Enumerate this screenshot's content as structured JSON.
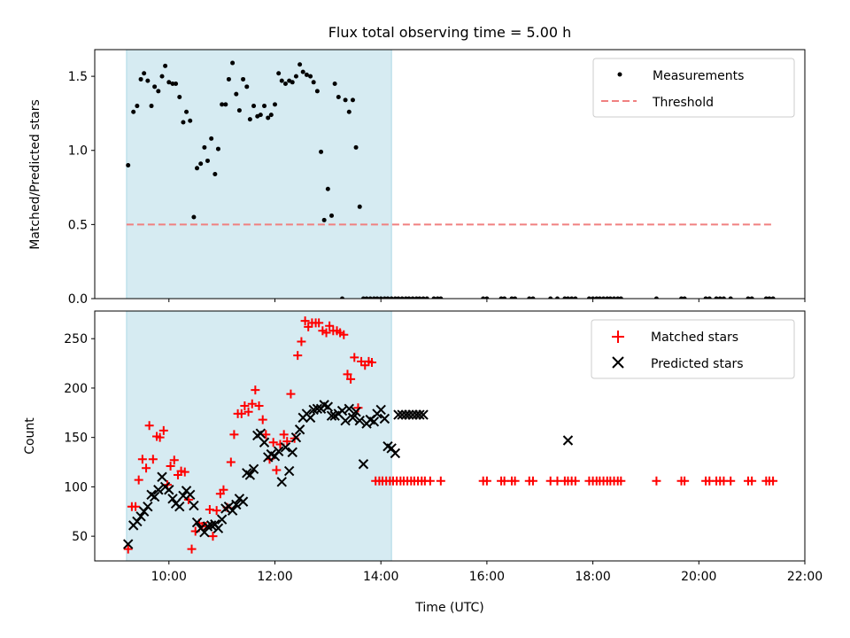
{
  "title": "Flux total observing time = 5.00 h",
  "xlabel": "Time (UTC)",
  "xtick_labels": [
    "10:00",
    "12:00",
    "14:00",
    "16:00",
    "18:00",
    "20:00",
    "22:00"
  ],
  "colors": {
    "measurements": "#000000",
    "threshold": "#f08080",
    "matched": "#ff0000",
    "predicted": "#000000",
    "span": "#add8e6"
  },
  "chart_data": [
    {
      "type": "scatter",
      "ylabel": "Matched/Predicted stars",
      "xlim": [
        8.6,
        22.0
      ],
      "ylim": [
        0,
        1.68
      ],
      "yticks": [
        0.0,
        0.5,
        1.0,
        1.5
      ],
      "ytick_labels": [
        "0.0",
        "0.5",
        "1.0",
        "1.5"
      ],
      "shaded_span": [
        9.2,
        14.2
      ],
      "legend": {
        "position": "top-right",
        "entries": [
          "Measurements",
          "Threshold"
        ]
      },
      "threshold": {
        "name": "Threshold",
        "y": 0.5,
        "x_range": [
          9.2,
          21.4
        ]
      },
      "series": [
        {
          "name": "Measurements",
          "x": [
            9.23,
            9.33,
            9.4,
            9.47,
            9.53,
            9.6,
            9.67,
            9.73,
            9.8,
            9.87,
            9.93,
            10.0,
            10.07,
            10.13,
            10.2,
            10.27,
            10.33,
            10.4,
            10.47,
            10.53,
            10.6,
            10.67,
            10.73,
            10.8,
            10.87,
            10.93,
            11.0,
            11.07,
            11.13,
            11.2,
            11.27,
            11.33,
            11.4,
            11.47,
            11.53,
            11.6,
            11.67,
            11.73,
            11.8,
            11.87,
            11.93,
            12.0,
            12.07,
            12.13,
            12.2,
            12.27,
            12.33,
            12.4,
            12.47,
            12.53,
            12.6,
            12.67,
            12.73,
            12.8,
            12.87,
            12.93,
            13.0,
            13.07,
            13.13,
            13.2,
            13.27,
            13.33,
            13.4,
            13.47,
            13.53,
            13.6,
            13.67,
            13.73,
            13.8,
            13.87,
            13.93,
            14.0,
            14.07,
            14.13,
            14.2,
            14.27,
            14.33,
            14.4,
            14.47,
            14.53,
            14.6,
            14.67,
            14.73,
            14.8,
            14.87,
            15.0,
            15.07,
            15.13,
            15.93,
            16.0,
            16.27,
            16.33,
            16.47,
            16.53,
            16.8,
            16.87,
            17.2,
            17.33,
            17.47,
            17.53,
            17.6,
            17.67,
            17.93,
            18.0,
            18.07,
            18.13,
            18.2,
            18.27,
            18.33,
            18.4,
            18.47,
            18.53,
            19.2,
            19.67,
            19.73,
            20.13,
            20.2,
            20.33,
            20.4,
            20.47,
            20.6,
            20.93,
            21.0,
            21.27,
            21.33,
            21.4
          ],
          "y": [
            0.9,
            1.26,
            1.3,
            1.48,
            1.52,
            1.47,
            1.3,
            1.43,
            1.4,
            1.5,
            1.57,
            1.46,
            1.45,
            1.45,
            1.36,
            1.19,
            1.26,
            1.2,
            0.55,
            0.88,
            0.91,
            1.02,
            0.93,
            1.08,
            0.84,
            1.01,
            1.31,
            1.31,
            1.48,
            1.59,
            1.38,
            1.27,
            1.48,
            1.43,
            1.21,
            1.3,
            1.23,
            1.24,
            1.3,
            1.22,
            1.24,
            1.31,
            1.52,
            1.47,
            1.45,
            1.47,
            1.46,
            1.5,
            1.58,
            1.53,
            1.51,
            1.5,
            1.46,
            1.4,
            0.99,
            0.53,
            0.74,
            0.56,
            1.45,
            1.36,
            0.0,
            1.34,
            1.26,
            1.34,
            1.02,
            0.62,
            0.0,
            0.0,
            0.0,
            0.0,
            0.0,
            0.0,
            0.0,
            0.0,
            0.0,
            0.0,
            0.0,
            0.0,
            0.0,
            0.0,
            0.0,
            0.0,
            0.0,
            0.0,
            0.0,
            0.0,
            0.0,
            0.0,
            0.0,
            0.0,
            0.0,
            0.0,
            0.0,
            0.0,
            0.0,
            0.0,
            0.0,
            0.0,
            0.0,
            0.0,
            0.0,
            0.0,
            0.0,
            0.0,
            0.0,
            0.0,
            0.0,
            0.0,
            0.0,
            0.0,
            0.0,
            0.0,
            0.0,
            0.0,
            0.0,
            0.0,
            0.0,
            0.0,
            0.0,
            0.0,
            0.0,
            0.0,
            0.0,
            0.0,
            0.0,
            0.0
          ]
        }
      ]
    },
    {
      "type": "scatter",
      "ylabel": "Count",
      "xlim": [
        8.6,
        22.0
      ],
      "ylim": [
        25,
        278
      ],
      "yticks": [
        50,
        100,
        150,
        200,
        250
      ],
      "ytick_labels": [
        "50",
        "100",
        "150",
        "200",
        "250"
      ],
      "shaded_span": [
        9.2,
        14.2
      ],
      "legend": {
        "position": "top-right",
        "entries": [
          "Matched stars",
          "Predicted stars"
        ]
      },
      "series": [
        {
          "name": "Matched stars",
          "x": [
            9.23,
            9.3,
            9.37,
            9.43,
            9.5,
            9.57,
            9.63,
            9.7,
            9.77,
            9.83,
            9.9,
            9.97,
            10.03,
            10.1,
            10.17,
            10.23,
            10.3,
            10.37,
            10.43,
            10.5,
            10.57,
            10.63,
            10.7,
            10.77,
            10.83,
            10.9,
            10.97,
            11.03,
            11.1,
            11.17,
            11.23,
            11.3,
            11.37,
            11.43,
            11.5,
            11.57,
            11.63,
            11.7,
            11.77,
            11.83,
            11.9,
            11.97,
            12.03,
            12.1,
            12.17,
            12.23,
            12.3,
            12.37,
            12.43,
            12.5,
            12.57,
            12.63,
            12.7,
            12.77,
            12.83,
            12.9,
            12.97,
            13.03,
            13.1,
            13.17,
            13.23,
            13.3,
            13.37,
            13.43,
            13.5,
            13.57,
            13.63,
            13.7,
            13.77,
            13.83,
            13.9,
            13.97,
            14.03,
            14.1,
            14.17,
            14.23,
            14.3,
            14.37,
            14.43,
            14.5,
            14.57,
            14.63,
            14.7,
            14.77,
            14.83,
            14.93,
            15.13,
            15.93,
            16.0,
            16.27,
            16.33,
            16.47,
            16.53,
            16.8,
            16.87,
            17.2,
            17.33,
            17.47,
            17.53,
            17.6,
            17.67,
            17.93,
            18.0,
            18.07,
            18.13,
            18.2,
            18.27,
            18.33,
            18.4,
            18.47,
            18.53,
            19.2,
            19.67,
            19.73,
            20.13,
            20.2,
            20.33,
            20.4,
            20.47,
            20.6,
            20.93,
            21.0,
            21.27,
            21.33,
            21.4
          ],
          "y": [
            37,
            80,
            80,
            107,
            128,
            119,
            162,
            128,
            151,
            150,
            157,
            102,
            121,
            127,
            112,
            116,
            115,
            87,
            37,
            55,
            63,
            60,
            60,
            77,
            50,
            76,
            93,
            97,
            79,
            125,
            153,
            174,
            174,
            182,
            176,
            184,
            198,
            182,
            168,
            153,
            128,
            145,
            117,
            143,
            153,
            146,
            194,
            149,
            233,
            247,
            268,
            262,
            266,
            266,
            266,
            258,
            256,
            263,
            258,
            258,
            256,
            254,
            214,
            209,
            231,
            180,
            227,
            223,
            227,
            226,
            106,
            106,
            106,
            106,
            106,
            106,
            106,
            106,
            106,
            106,
            106,
            106,
            106,
            106,
            106,
            106,
            106,
            106,
            106,
            106,
            106,
            106,
            106,
            106,
            106,
            106,
            106,
            106,
            106,
            106,
            106,
            106,
            106,
            106,
            106,
            106,
            106,
            106,
            106,
            106,
            106,
            106,
            106,
            106,
            106,
            106,
            106,
            106,
            106,
            106,
            106,
            106,
            106,
            106,
            106
          ]
        },
        {
          "name": "Predicted stars",
          "x": [
            9.23,
            9.33,
            9.4,
            9.47,
            9.53,
            9.6,
            9.67,
            9.73,
            9.8,
            9.87,
            9.93,
            10.0,
            10.07,
            10.13,
            10.2,
            10.27,
            10.33,
            10.4,
            10.47,
            10.53,
            10.6,
            10.67,
            10.73,
            10.8,
            10.87,
            10.93,
            11.0,
            11.07,
            11.13,
            11.2,
            11.27,
            11.33,
            11.4,
            11.47,
            11.53,
            11.6,
            11.67,
            11.73,
            11.8,
            11.87,
            11.93,
            12.0,
            12.07,
            12.13,
            12.2,
            12.27,
            12.33,
            12.4,
            12.47,
            12.53,
            12.6,
            12.67,
            12.73,
            12.8,
            12.87,
            12.93,
            13.0,
            13.07,
            13.13,
            13.2,
            13.27,
            13.33,
            13.4,
            13.47,
            13.53,
            13.6,
            13.67,
            13.73,
            13.8,
            13.87,
            13.93,
            14.0,
            14.07,
            14.13,
            14.2,
            14.27,
            14.33,
            14.4,
            14.47,
            14.53,
            14.6,
            14.67,
            14.73,
            14.8,
            17.53
          ],
          "y": [
            42,
            61,
            65,
            70,
            75,
            80,
            92,
            90,
            97,
            110,
            100,
            97,
            88,
            83,
            80,
            91,
            96,
            92,
            81,
            64,
            58,
            54,
            60,
            61,
            62,
            58,
            67,
            78,
            80,
            76,
            82,
            88,
            85,
            114,
            112,
            118,
            152,
            154,
            145,
            130,
            133,
            131,
            136,
            105,
            140,
            116,
            135,
            150,
            158,
            170,
            174,
            170,
            178,
            179,
            179,
            183,
            181,
            172,
            172,
            174,
            177,
            167,
            179,
            170,
            176,
            167,
            123,
            164,
            168,
            166,
            174,
            178,
            169,
            141,
            139,
            134,
            173,
            173,
            173,
            173,
            173,
            173,
            173,
            173,
            147
          ]
        }
      ]
    }
  ]
}
